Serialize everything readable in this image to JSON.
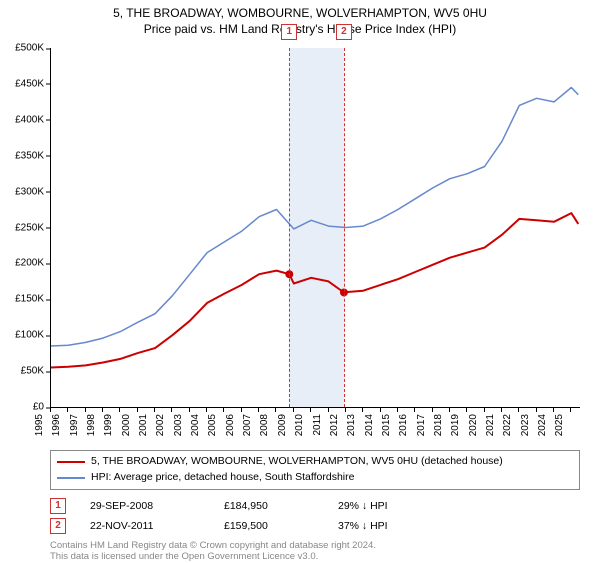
{
  "title_line1": "5, THE BROADWAY, WOMBOURNE, WOLVERHAMPTON, WV5 0HU",
  "title_line2": "Price paid vs. HM Land Registry's House Price Index (HPI)",
  "chart": {
    "type": "line",
    "background_color": "#ffffff",
    "band_color": "#e8eef8",
    "axis_color": "#000000",
    "marker_line_color": "#cc3333",
    "x_start": 1995,
    "x_end": 2025.5,
    "x_ticks": [
      1995,
      1996,
      1997,
      1998,
      1999,
      2000,
      2001,
      2002,
      2003,
      2004,
      2005,
      2006,
      2007,
      2008,
      2009,
      2010,
      2011,
      2012,
      2013,
      2014,
      2015,
      2016,
      2017,
      2018,
      2019,
      2020,
      2021,
      2022,
      2023,
      2024,
      2025
    ],
    "y_min": 0,
    "y_max": 500000,
    "y_ticks": [
      0,
      50000,
      100000,
      150000,
      200000,
      250000,
      300000,
      350000,
      400000,
      450000,
      500000
    ],
    "y_tick_labels": [
      "£0",
      "£50K",
      "£100K",
      "£150K",
      "£200K",
      "£250K",
      "£300K",
      "£350K",
      "£400K",
      "£450K",
      "£500K"
    ],
    "tick_fontsize": 10,
    "series": [
      {
        "key": "subject",
        "label": "5, THE BROADWAY, WOMBOURNE, WOLVERHAMPTON, WV5 0HU (detached house)",
        "color": "#cc0000",
        "width": 2,
        "points": [
          [
            1995,
            55000
          ],
          [
            1996,
            56000
          ],
          [
            1997,
            58000
          ],
          [
            1998,
            62000
          ],
          [
            1999,
            67000
          ],
          [
            2000,
            75000
          ],
          [
            2001,
            82000
          ],
          [
            2002,
            100000
          ],
          [
            2003,
            120000
          ],
          [
            2004,
            145000
          ],
          [
            2005,
            158000
          ],
          [
            2006,
            170000
          ],
          [
            2007,
            185000
          ],
          [
            2008,
            190000
          ],
          [
            2008.74,
            184950
          ],
          [
            2009,
            172000
          ],
          [
            2010,
            180000
          ],
          [
            2011,
            175000
          ],
          [
            2011.89,
            159500
          ],
          [
            2012,
            160000
          ],
          [
            2013,
            162000
          ],
          [
            2014,
            170000
          ],
          [
            2015,
            178000
          ],
          [
            2016,
            188000
          ],
          [
            2017,
            198000
          ],
          [
            2018,
            208000
          ],
          [
            2019,
            215000
          ],
          [
            2020,
            222000
          ],
          [
            2021,
            240000
          ],
          [
            2022,
            262000
          ],
          [
            2023,
            260000
          ],
          [
            2024,
            258000
          ],
          [
            2025,
            270000
          ],
          [
            2025.4,
            255000
          ]
        ]
      },
      {
        "key": "hpi",
        "label": "HPI: Average price, detached house, South Staffordshire",
        "color": "#6688cc",
        "width": 1.5,
        "points": [
          [
            1995,
            85000
          ],
          [
            1996,
            86000
          ],
          [
            1997,
            90000
          ],
          [
            1998,
            96000
          ],
          [
            1999,
            105000
          ],
          [
            2000,
            118000
          ],
          [
            2001,
            130000
          ],
          [
            2002,
            155000
          ],
          [
            2003,
            185000
          ],
          [
            2004,
            215000
          ],
          [
            2005,
            230000
          ],
          [
            2006,
            245000
          ],
          [
            2007,
            265000
          ],
          [
            2008,
            275000
          ],
          [
            2009,
            248000
          ],
          [
            2010,
            260000
          ],
          [
            2011,
            252000
          ],
          [
            2012,
            250000
          ],
          [
            2013,
            252000
          ],
          [
            2014,
            262000
          ],
          [
            2015,
            275000
          ],
          [
            2016,
            290000
          ],
          [
            2017,
            305000
          ],
          [
            2018,
            318000
          ],
          [
            2019,
            325000
          ],
          [
            2020,
            335000
          ],
          [
            2021,
            370000
          ],
          [
            2022,
            420000
          ],
          [
            2023,
            430000
          ],
          [
            2024,
            425000
          ],
          [
            2025,
            445000
          ],
          [
            2025.4,
            435000
          ]
        ]
      }
    ],
    "sale_markers": [
      {
        "n": "1",
        "x": 2008.74,
        "y": 184950
      },
      {
        "n": "2",
        "x": 2011.89,
        "y": 159500
      }
    ]
  },
  "legend": {
    "subject_label": "5, THE BROADWAY, WOMBOURNE, WOLVERHAMPTON, WV5 0HU (detached house)",
    "hpi_label": "HPI: Average price, detached house, South Staffordshire"
  },
  "sales": [
    {
      "n": "1",
      "date": "29-SEP-2008",
      "price": "£184,950",
      "diff": "29% ↓ HPI"
    },
    {
      "n": "2",
      "date": "22-NOV-2011",
      "price": "£159,500",
      "diff": "37% ↓ HPI"
    }
  ],
  "attribution_line1": "Contains HM Land Registry data © Crown copyright and database right 2024.",
  "attribution_line2": "This data is licensed under the Open Government Licence v3.0."
}
